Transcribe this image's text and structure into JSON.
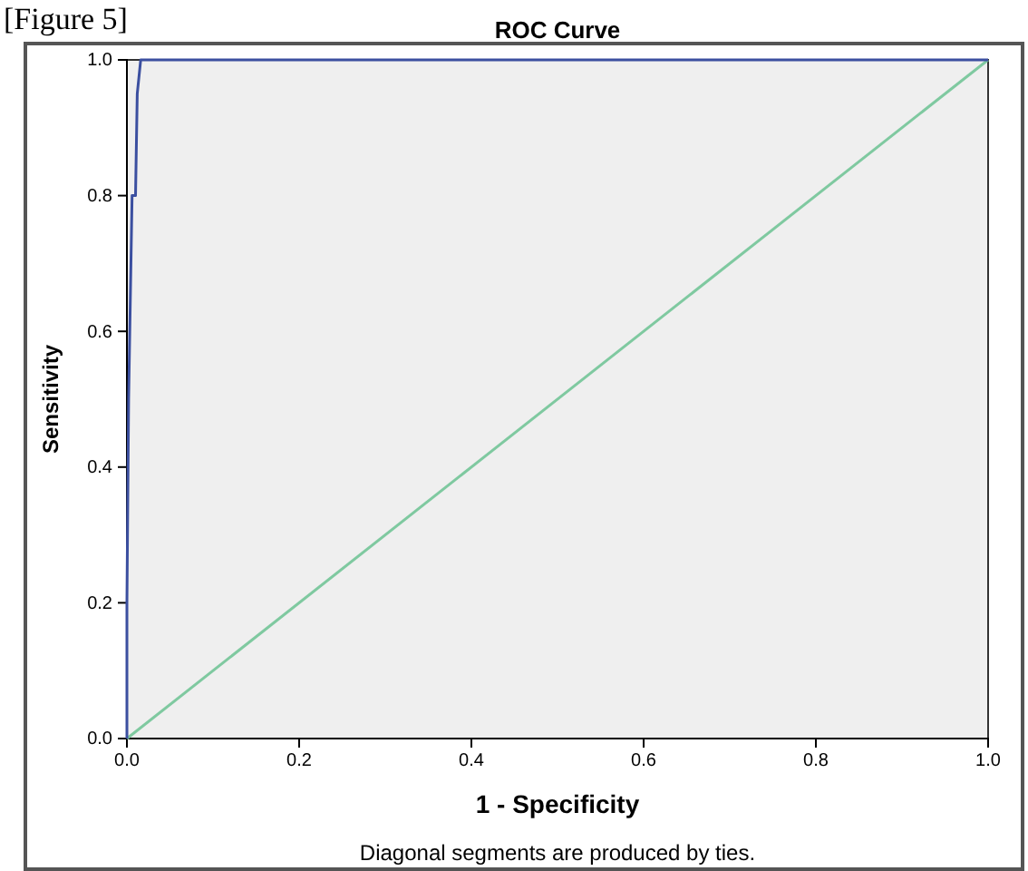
{
  "chart_data": {
    "type": "line",
    "title": "ROC Curve",
    "xlabel": "1 - Specificity",
    "ylabel": "Sensitivity",
    "xlim": [
      0,
      1
    ],
    "ylim": [
      0,
      1
    ],
    "xticks": [
      {
        "value": 0,
        "label": "0.0"
      },
      {
        "value": 0.2,
        "label": "0.2"
      },
      {
        "value": 0.4,
        "label": "0.4"
      },
      {
        "value": 0.6,
        "label": "0.6"
      },
      {
        "value": 0.8,
        "label": "0.8"
      },
      {
        "value": 1,
        "label": "1.0"
      }
    ],
    "yticks": [
      {
        "value": 0,
        "label": "0.0"
      },
      {
        "value": 0.2,
        "label": "0.2"
      },
      {
        "value": 0.4,
        "label": "0.4"
      },
      {
        "value": 0.6,
        "label": "0.6"
      },
      {
        "value": 0.8,
        "label": "0.8"
      },
      {
        "value": 1,
        "label": "1.0"
      }
    ],
    "series": [
      {
        "color": "#3b4fa0",
        "x": [
          0,
          0,
          0.002,
          0.006,
          0.01,
          0.012,
          0.016,
          1
        ],
        "values": [
          0,
          0.2,
          0.5,
          0.8,
          0.8,
          0.95,
          1,
          1
        ]
      },
      {
        "color": "#7fc9a0",
        "x": [
          0,
          1
        ],
        "values": [
          0,
          1
        ]
      }
    ],
    "grid": false,
    "marker": "none",
    "line_style": "solid",
    "annotations": [
      "[Figure 5]",
      "Diagonal segments are produced by ties."
    ]
  }
}
